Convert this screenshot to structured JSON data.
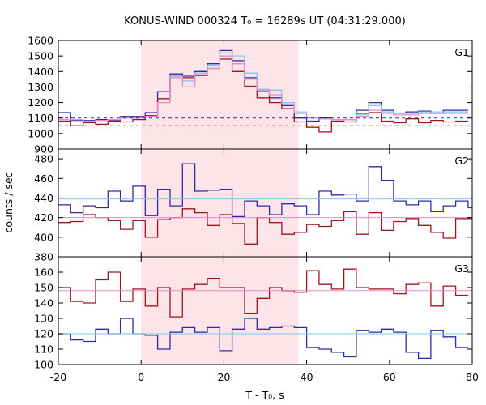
{
  "chart_data": {
    "type": "line",
    "title": "KONUS-WIND 000324 T₀ = 16289s UT (04:31:29.000)",
    "xlabel": "T - T₀, s",
    "ylabel": "counts / sec",
    "xlim": [
      -20,
      80
    ],
    "x_ticks": [
      -20,
      0,
      20,
      40,
      60,
      80
    ],
    "shaded_interval": [
      0,
      38
    ],
    "colors": {
      "blue": "#2b2ba6",
      "darkred": "#a0141e",
      "lightblue": "#7ec8ee",
      "pink": "#ea88d0",
      "shade": "#fde4e8"
    },
    "bins": [
      -20,
      -17,
      -14,
      -11,
      -8,
      -5,
      -2,
      1,
      4,
      7,
      10,
      13,
      16,
      19,
      22,
      25,
      28,
      31,
      34,
      37,
      40,
      43,
      46,
      49,
      52,
      55,
      58,
      61,
      64,
      67,
      70,
      73,
      76,
      79
    ],
    "panels": [
      {
        "label": "G1",
        "ylim": [
          900,
          1600
        ],
        "y_ticks": [
          900,
          1000,
          1100,
          1200,
          1300,
          1400,
          1500,
          1600
        ],
        "series": [
          {
            "color": "blue",
            "style": "step",
            "values": [
              1135,
              1085,
              1085,
              1090,
              1085,
              1110,
              1110,
              1135,
              1270,
              1385,
              1370,
              1400,
              1450,
              1535,
              1470,
              1360,
              1270,
              1230,
              1180,
              1100,
              1080,
              1100,
              1090,
              1090,
              1150,
              1200,
              1150,
              1130,
              1140,
              1145,
              1130,
              1150,
              1150
            ]
          },
          {
            "color": "darkred",
            "style": "step",
            "values": [
              1080,
              1050,
              1070,
              1060,
              1080,
              1075,
              1090,
              1115,
              1225,
              1370,
              1360,
              1375,
              1420,
              1480,
              1400,
              1305,
              1230,
              1200,
              1160,
              1075,
              1040,
              1010,
              1080,
              1075,
              1130,
              1135,
              1080,
              1070,
              1095,
              1070,
              1085,
              1075,
              1080
            ]
          },
          {
            "color": "lightblue",
            "style": "step",
            "values": [
              1090,
              1090,
              1080,
              1085,
              1090,
              1100,
              1100,
              1110,
              1200,
              1370,
              1340,
              1390,
              1440,
              1520,
              1500,
              1390,
              1285,
              1280,
              1200,
              1140,
              1100,
              1095,
              1090,
              1090,
              1120,
              1180,
              1140,
              1130,
              1130,
              1140,
              1140,
              1140,
              1140
            ]
          },
          {
            "color": "pink",
            "style": "step",
            "values": [
              1090,
              1090,
              1080,
              1085,
              1090,
              1100,
              1100,
              1110,
              1200,
              1360,
              1300,
              1380,
              1420,
              1500,
              1450,
              1350,
              1280,
              1250,
              1190,
              1130,
              1100,
              1095,
              1090,
              1090,
              1110,
              1150,
              1130,
              1120,
              1120,
              1130,
              1130,
              1130,
              1130
            ]
          },
          {
            "color": "blue",
            "style": "dashed",
            "values": [
              1100
            ]
          },
          {
            "color": "darkred",
            "style": "dashed",
            "values": [
              1050
            ]
          }
        ]
      },
      {
        "label": "G2",
        "ylim": [
          380,
          490
        ],
        "y_ticks": [
          380,
          400,
          420,
          440,
          460,
          480
        ],
        "series": [
          {
            "color": "blue",
            "style": "step",
            "values": [
              433,
              425,
              432,
              430,
              447,
              437,
              452,
              422,
              449,
              432,
              475,
              447,
              448,
              449,
              421,
              437,
              432,
              423,
              434,
              432,
              423,
              447,
              443,
              444,
              437,
              472,
              458,
              437,
              433,
              437,
              426,
              432,
              437,
              430
            ]
          },
          {
            "color": "darkred",
            "style": "step",
            "values": [
              415,
              416,
              423,
              420,
              417,
              408,
              417,
              400,
              418,
              420,
              429,
              425,
              412,
              423,
              414,
              393,
              420,
              415,
              403,
              405,
              413,
              411,
              417,
              426,
              403,
              425,
              407,
              416,
              419,
              412,
              405,
              399,
              419,
              419
            ]
          },
          {
            "color": "lightblue",
            "style": "flat",
            "values": [
              439
            ]
          },
          {
            "color": "pink",
            "style": "flat",
            "values": [
              420
            ]
          }
        ]
      },
      {
        "label": "G3",
        "ylim": [
          100,
          170
        ],
        "y_ticks": [
          100,
          110,
          120,
          130,
          140,
          150,
          160
        ],
        "series": [
          {
            "color": "darkred",
            "style": "step",
            "values": [
              150,
              141,
              140,
              155,
              160,
              141,
              149,
              138,
              150,
              131,
              149,
              152,
              156,
              150,
              150,
              133,
              143,
              150,
              148,
              147,
              161,
              152,
              149,
              162,
              150,
              149,
              149,
              146,
              152,
              153,
              138,
              151,
              145
            ]
          },
          {
            "color": "blue",
            "style": "step",
            "values": [
              120,
              116,
              115,
              123,
              120,
              130,
              120,
              119,
              110,
              121,
              124,
              121,
              124,
              109,
              123,
              130,
              123,
              124,
              125,
              124,
              111,
              110,
              108,
              105,
              122,
              121,
              123,
              121,
              108,
              104,
              122,
              118,
              111
            ]
          },
          {
            "color": "lightblue",
            "style": "flat",
            "values": [
              120
            ]
          },
          {
            "color": "pink",
            "style": "flat",
            "values": [
              148
            ]
          }
        ]
      }
    ]
  }
}
